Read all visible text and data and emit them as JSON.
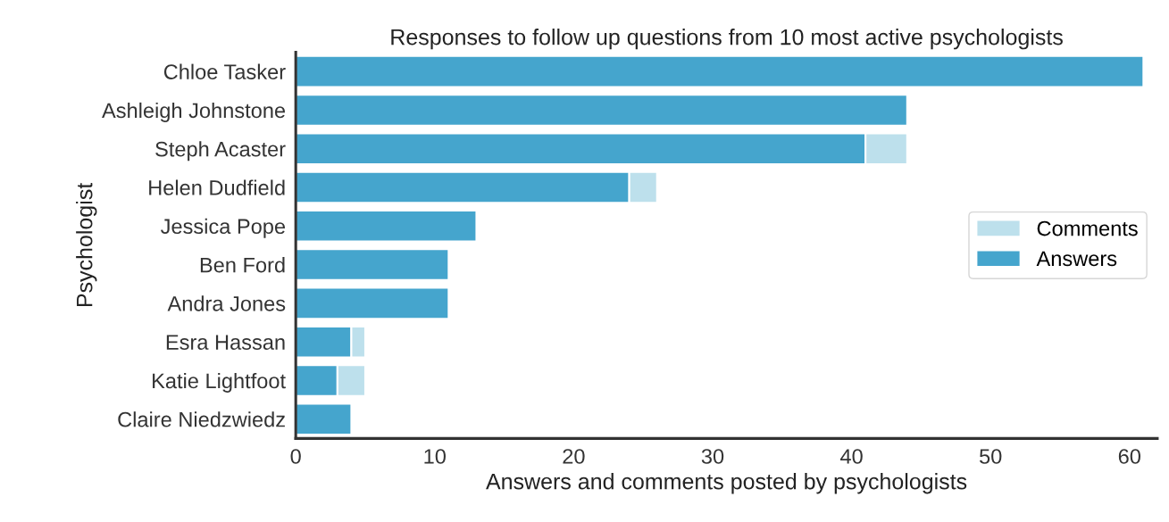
{
  "chart_data": {
    "type": "bar",
    "orientation": "horizontal",
    "stacked": true,
    "title": "Responses to follow up questions from 10 most active psychologists",
    "xlabel": "Answers and comments posted by psychologists",
    "ylabel": "Psychologist",
    "categories": [
      "Chloe Tasker",
      "Ashleigh Johnstone",
      "Steph Acaster",
      "Helen Dudfield",
      "Jessica Pope",
      "Ben Ford",
      "Andra Jones",
      "Esra Hassan",
      "Katie Lightfoot",
      "Claire Niedzwiedz"
    ],
    "series": [
      {
        "name": "Answers",
        "color": "#45a5cd",
        "values": [
          61,
          44,
          41,
          24,
          13,
          11,
          11,
          4,
          3,
          4
        ]
      },
      {
        "name": "Comments",
        "color": "#bde0ec",
        "values": [
          null,
          null,
          3,
          2,
          null,
          null,
          null,
          1,
          2,
          null
        ]
      }
    ],
    "xlim": [
      0,
      62
    ],
    "xticks": [
      0,
      10,
      20,
      30,
      40,
      50,
      60
    ],
    "grid": false,
    "legend": "right"
  }
}
